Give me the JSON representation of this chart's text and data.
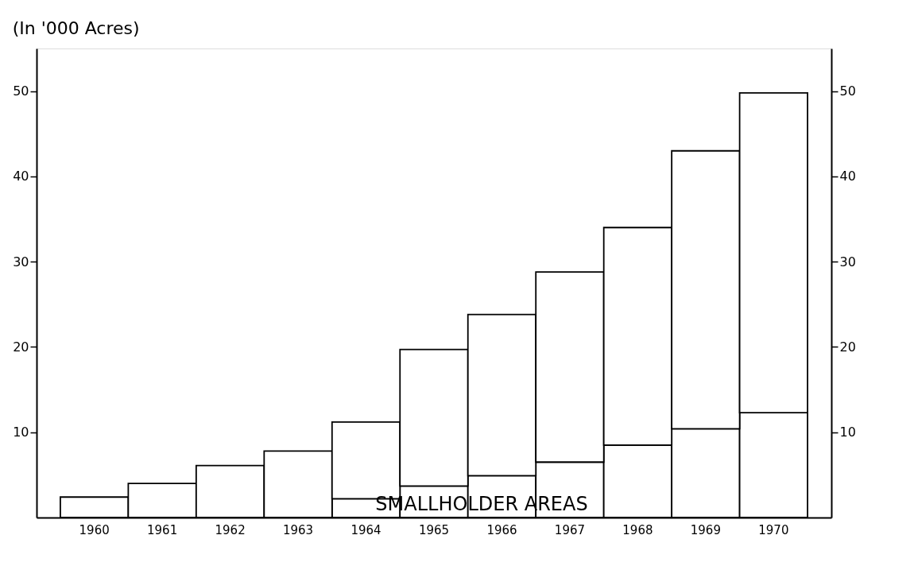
{
  "chart_data": {
    "type": "bar",
    "stacked": true,
    "ylabel": "(In '000 Acres)",
    "categories": [
      "1960",
      "1961",
      "1962",
      "1963",
      "1964",
      "1965",
      "1966",
      "1967",
      "1968",
      "1969",
      "1970"
    ],
    "series": [
      {
        "color": "#ffffff",
        "values": [
          null,
          null,
          null,
          null,
          2.2,
          3.7,
          4.9,
          6.5,
          8.5,
          10.4,
          12.3
        ]
      },
      {
        "color": "#ffffff",
        "values": [
          2.4,
          4.0,
          6.1,
          7.8,
          9.0,
          16.0,
          18.9,
          22.3,
          25.5,
          32.6,
          37.5
        ]
      }
    ],
    "ylim": [
      0,
      55
    ],
    "yticks": [
      10,
      20,
      30,
      40,
      50
    ],
    "y2lim": [
      0,
      55
    ],
    "y2ticks": [
      10,
      20,
      30,
      40,
      50
    ],
    "annotations": [
      "SMALLHOLDER AREAS"
    ],
    "grid": false,
    "legend": false
  }
}
